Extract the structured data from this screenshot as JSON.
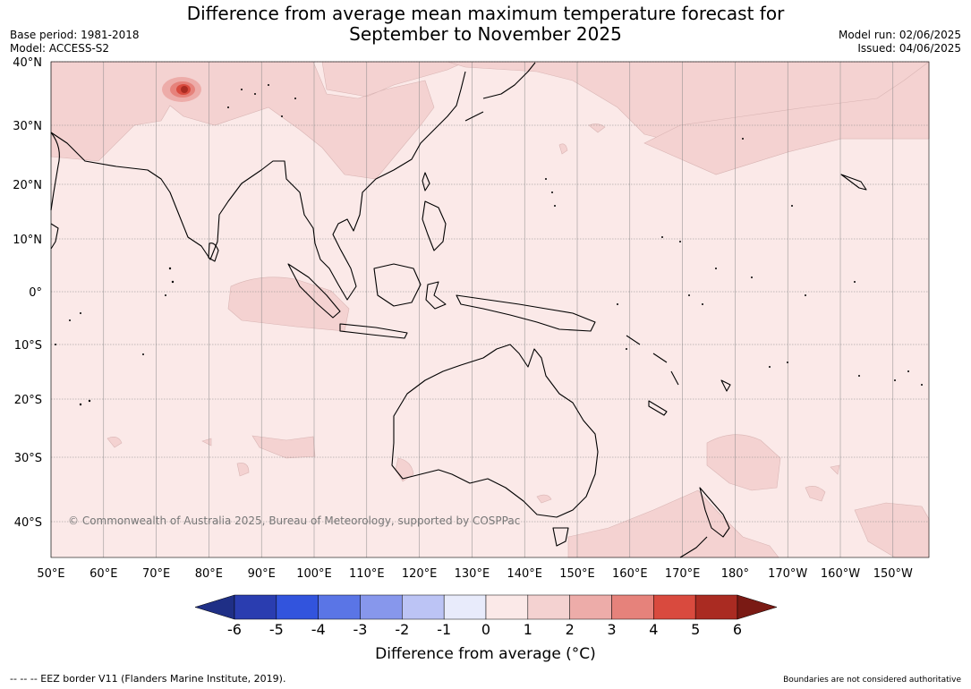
{
  "title_line1": "Difference from average mean maximum temperature forecast for",
  "title_line2": "September to November 2025",
  "base_period": "Base period: 1981-2018",
  "model": "Model: ACCESS-S2",
  "model_run": "Model run: 02/06/2025",
  "issued": "Issued: 04/06/2025",
  "copyright": "© Commonwealth of Australia 2025, Bureau of Meteorology, supported by COSPPac",
  "lon_labels": [
    "50°E",
    "60°E",
    "70°E",
    "80°E",
    "90°E",
    "100°E",
    "110°E",
    "120°E",
    "130°E",
    "140°E",
    "150°E",
    "160°E",
    "170°E",
    "180°",
    "170°W",
    "160°W",
    "150°W"
  ],
  "lat_labels": [
    "40°N",
    "30°N",
    "20°N",
    "10°N",
    "0°",
    "10°S",
    "20°S",
    "30°S",
    "40°S"
  ],
  "colorbar": {
    "ticks": [
      "-6",
      "-5",
      "-4",
      "-3",
      "-2",
      "-1",
      "0",
      "1",
      "2",
      "3",
      "4",
      "5",
      "6"
    ],
    "colors": [
      "#1f2f86",
      "#2a3db0",
      "#3254dd",
      "#5a75e6",
      "#8797ec",
      "#bcc4f5",
      "#e8ebfb",
      "#fbe9e8",
      "#f4d2d1",
      "#edaca9",
      "#e6827b",
      "#d94a3e",
      "#aa2b22",
      "#7a1a14"
    ],
    "label": "Difference from average (°C)"
  },
  "footer_left": "--  --  -- EEZ border V11 (Flanders Marine Institute, 2019).",
  "footer_right": "Boundaries are not considered authoritative",
  "colors": {
    "base_fill": "#fbe9e8",
    "anomaly_1_2": "#f4d2d1",
    "grid": "#999999"
  }
}
